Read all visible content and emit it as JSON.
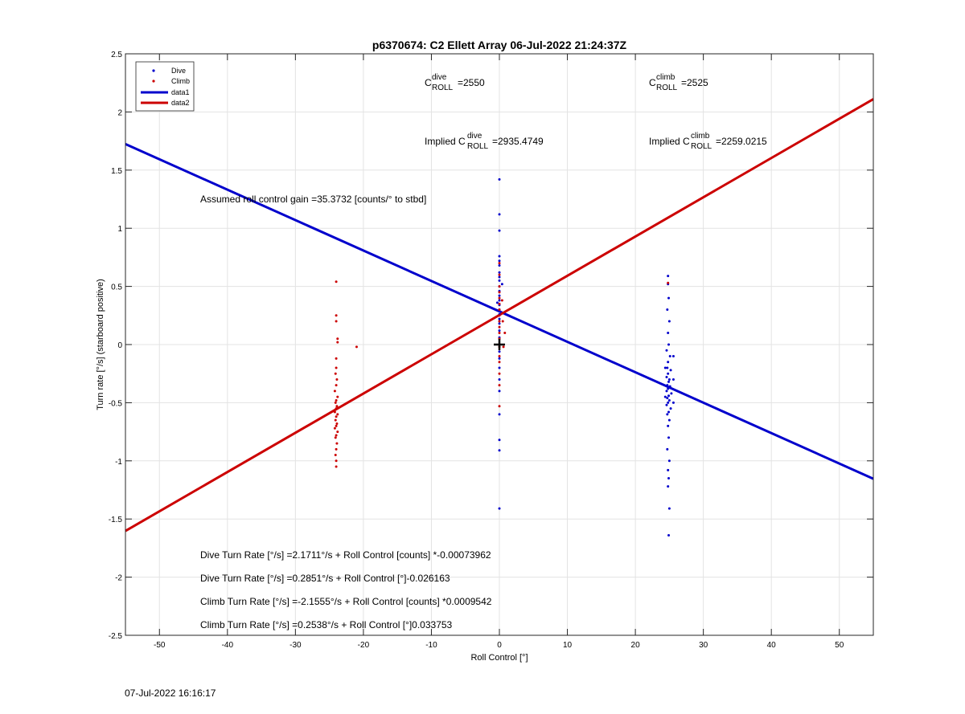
{
  "chart_data": {
    "type": "scatter",
    "title": "p6370674: C2 Ellett Array 06-Jul-2022 21:24:37Z",
    "xlabel": "Roll Control [°]",
    "ylabel": "Turn rate [°/s] (starboard positive)",
    "xlim": [
      -55,
      55
    ],
    "ylim": [
      -2.5,
      2.5
    ],
    "xticks": [
      -50,
      -40,
      -30,
      -20,
      -10,
      0,
      10,
      20,
      30,
      40,
      50
    ],
    "yticks": [
      -2.5,
      -2,
      -1.5,
      -1,
      -0.5,
      0,
      0.5,
      1,
      1.5,
      2,
      2.5
    ],
    "grid": true,
    "legend_position": "top-left",
    "legend": [
      "Dive",
      "Climb",
      "data1",
      "data2"
    ],
    "colors": {
      "dive": "#0000cc",
      "climb": "#cc0000",
      "center_marker": "#000000"
    },
    "series": [
      {
        "name": "Dive",
        "kind": "points",
        "points": [
          [
            0,
            1.42
          ],
          [
            0,
            1.12
          ],
          [
            0,
            0.98
          ],
          [
            0,
            0.76
          ],
          [
            0,
            0.72
          ],
          [
            0,
            0.68
          ],
          [
            0,
            0.62
          ],
          [
            0,
            0.58
          ],
          [
            0,
            0.55
          ],
          [
            0,
            0.5
          ],
          [
            0,
            0.46
          ],
          [
            0,
            0.42
          ],
          [
            0,
            0.38
          ],
          [
            0,
            0.34
          ],
          [
            0,
            0.3
          ],
          [
            0,
            0.26
          ],
          [
            0,
            0.22
          ],
          [
            0,
            0.18
          ],
          [
            0,
            0.12
          ],
          [
            0,
            0.06
          ],
          [
            0,
            0.0
          ],
          [
            0,
            -0.06
          ],
          [
            0,
            -0.12
          ],
          [
            0,
            -0.2
          ],
          [
            0,
            -0.3
          ],
          [
            0,
            -0.4
          ],
          [
            0,
            -0.6
          ],
          [
            0,
            -0.82
          ],
          [
            0,
            -0.91
          ],
          [
            0,
            -1.41
          ],
          [
            0.4,
            0.52
          ],
          [
            -0.3,
            0.36
          ],
          [
            24.8,
            0.59
          ],
          [
            24.8,
            0.52
          ],
          [
            24.9,
            0.4
          ],
          [
            24.7,
            0.3
          ],
          [
            25.0,
            0.2
          ],
          [
            24.8,
            0.1
          ],
          [
            24.9,
            0.0
          ],
          [
            24.6,
            -0.05
          ],
          [
            25.1,
            -0.1
          ],
          [
            24.8,
            -0.15
          ],
          [
            24.7,
            -0.2
          ],
          [
            25.2,
            -0.22
          ],
          [
            24.8,
            -0.25
          ],
          [
            24.6,
            -0.28
          ],
          [
            25.0,
            -0.3
          ],
          [
            24.9,
            -0.32
          ],
          [
            24.7,
            -0.35
          ],
          [
            25.1,
            -0.36
          ],
          [
            24.8,
            -0.38
          ],
          [
            24.6,
            -0.4
          ],
          [
            25.3,
            -0.42
          ],
          [
            24.9,
            -0.44
          ],
          [
            24.7,
            -0.46
          ],
          [
            25.0,
            -0.48
          ],
          [
            24.8,
            -0.5
          ],
          [
            24.6,
            -0.52
          ],
          [
            25.2,
            -0.55
          ],
          [
            24.9,
            -0.58
          ],
          [
            24.7,
            -0.6
          ],
          [
            25.0,
            -0.65
          ],
          [
            24.8,
            -0.7
          ],
          [
            24.9,
            -0.8
          ],
          [
            24.7,
            -0.9
          ],
          [
            25.0,
            -1.0
          ],
          [
            24.8,
            -1.08
          ],
          [
            24.9,
            -1.15
          ],
          [
            24.8,
            -1.22
          ],
          [
            25.0,
            -1.41
          ],
          [
            24.9,
            -1.64
          ],
          [
            25.6,
            -0.1
          ],
          [
            25.6,
            -0.3
          ],
          [
            25.6,
            -0.5
          ],
          [
            24.4,
            -0.2
          ],
          [
            24.4,
            -0.45
          ]
        ]
      },
      {
        "name": "Climb",
        "kind": "points",
        "points": [
          [
            -24,
            0.54
          ],
          [
            -24,
            0.25
          ],
          [
            -24,
            0.2
          ],
          [
            -23.8,
            0.05
          ],
          [
            -23.8,
            0.02
          ],
          [
            -21,
            -0.02
          ],
          [
            -24,
            -0.12
          ],
          [
            -24,
            -0.2
          ],
          [
            -24.1,
            -0.25
          ],
          [
            -23.9,
            -0.3
          ],
          [
            -24,
            -0.35
          ],
          [
            -24.2,
            -0.4
          ],
          [
            -23.8,
            -0.45
          ],
          [
            -24,
            -0.48
          ],
          [
            -24.1,
            -0.5
          ],
          [
            -23.9,
            -0.53
          ],
          [
            -24,
            -0.55
          ],
          [
            -24.2,
            -0.58
          ],
          [
            -23.8,
            -0.6
          ],
          [
            -24,
            -0.62
          ],
          [
            -24.1,
            -0.65
          ],
          [
            -23.9,
            -0.68
          ],
          [
            -24,
            -0.7
          ],
          [
            -24.2,
            -0.72
          ],
          [
            -23.8,
            -0.75
          ],
          [
            -24,
            -0.78
          ],
          [
            -24.1,
            -0.8
          ],
          [
            -23.9,
            -0.85
          ],
          [
            -24,
            -0.9
          ],
          [
            -24.1,
            -0.95
          ],
          [
            -24,
            -1.0
          ],
          [
            -24,
            -1.05
          ],
          [
            0,
            0.7
          ],
          [
            0,
            0.6
          ],
          [
            0,
            0.5
          ],
          [
            0,
            0.45
          ],
          [
            0,
            0.4
          ],
          [
            0,
            0.35
          ],
          [
            0,
            0.3
          ],
          [
            0,
            0.25
          ],
          [
            0,
            0.2
          ],
          [
            0,
            0.15
          ],
          [
            0,
            0.1
          ],
          [
            0,
            0.05
          ],
          [
            0,
            -0.02
          ],
          [
            0,
            -0.1
          ],
          [
            0,
            -0.15
          ],
          [
            0,
            -0.25
          ],
          [
            0,
            -0.35
          ],
          [
            0,
            -0.53
          ],
          [
            0.5,
            0.2
          ],
          [
            0.6,
            -0.02
          ],
          [
            0.4,
            0.38
          ],
          [
            0.8,
            0.1
          ],
          [
            24.8,
            0.53
          ]
        ]
      },
      {
        "name": "data1",
        "kind": "line",
        "color": "#0000cc",
        "slope": -0.026163,
        "intercept": 0.2851
      },
      {
        "name": "data2",
        "kind": "line",
        "color": "#cc0000",
        "slope": 0.033753,
        "intercept": 0.2538
      }
    ],
    "center_marker": [
      0,
      0
    ],
    "annotations": {
      "c_dive": {
        "prefix": "C",
        "sup": "dive",
        "sub": "ROLL",
        "value": "=2550"
      },
      "c_climb": {
        "prefix": "C",
        "sup": "climb",
        "sub": "ROLL",
        "value": "=2525"
      },
      "implied_dive": {
        "prefix": "Implied C",
        "sup": "dive",
        "sub": "ROLL",
        "value": "=2935.4749"
      },
      "implied_climb": {
        "prefix": "Implied C",
        "sup": "climb",
        "sub": "ROLL",
        "value": "=2259.0215"
      },
      "gain": "Assumed roll control gain =35.3732 [counts/° to stbd]",
      "eq1": "Dive Turn Rate [°/s] =2.1711°/s + Roll Control [counts] *-0.00073962",
      "eq2": "Dive Turn Rate [°/s] =0.2851°/s + Roll Control [°]-0.026163",
      "eq3": "Climb Turn Rate [°/s] =-2.1555°/s + Roll Control [counts] *0.0009542",
      "eq4": "Climb Turn Rate [°/s] =0.2538°/s + Roll Control [°]0.033753"
    }
  },
  "timestamp": "07-Jul-2022 16:16:17"
}
